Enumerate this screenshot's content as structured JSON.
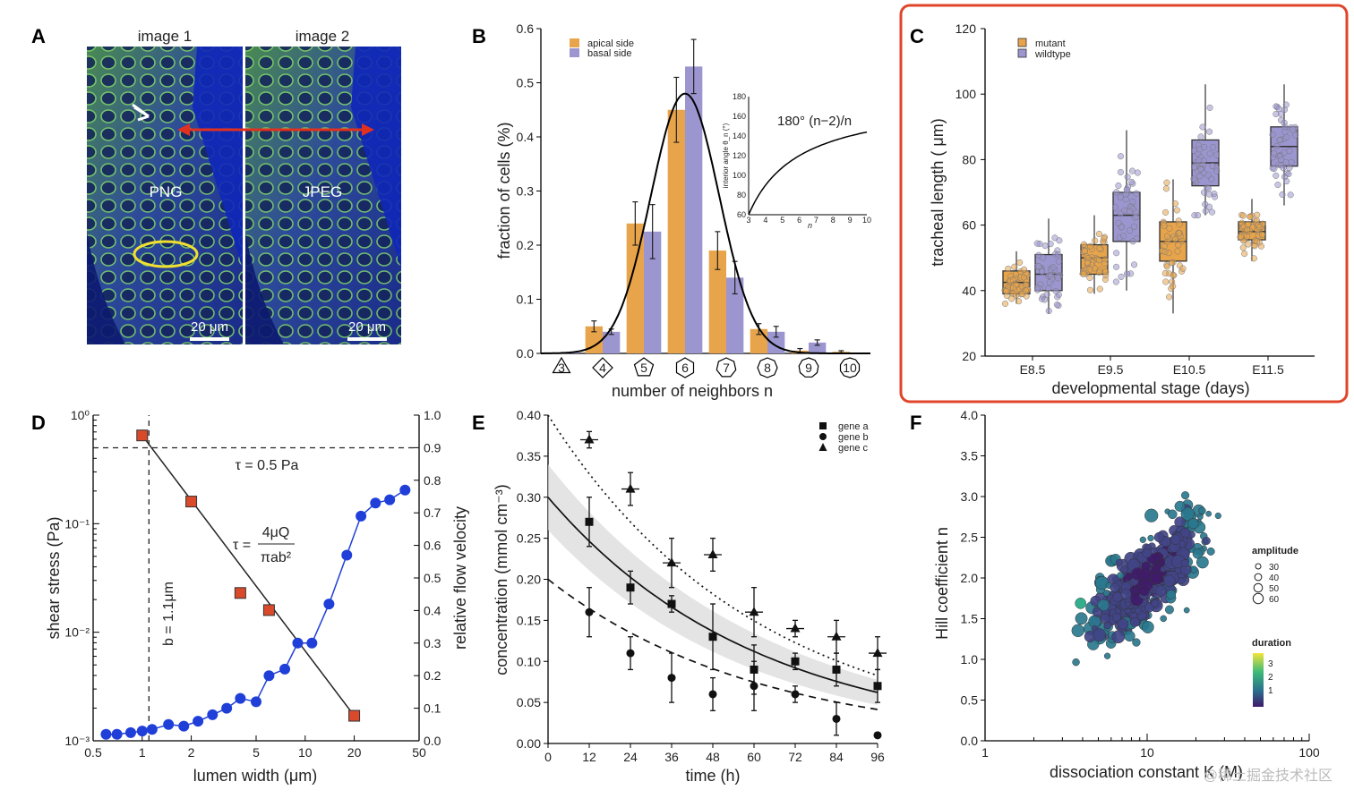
{
  "panels": {
    "A": {
      "label": "A",
      "image1_title": "image 1",
      "image2_title": "image 2",
      "image1_text": "PNG",
      "image2_text": "JPEG",
      "scale_bar": "20 μm"
    },
    "B": {
      "label": "B"
    },
    "C": {
      "label": "C"
    },
    "D": {
      "label": "D",
      "tau_text": "τ = 0.5 Pa",
      "b_text": "b = 1.1μm",
      "eq_lhs": "τ =",
      "eq_num": "4μQ",
      "eq_den": "πab²"
    },
    "E": {
      "label": "E"
    },
    "F": {
      "label": "F"
    }
  },
  "watermark": "@稀土掘金技术社区",
  "colors": {
    "orange": "#e8a44a",
    "purple": "#9b96cf",
    "red": "#d94a2b",
    "blue": "#1f3fd8",
    "highlight": "#e0452a"
  },
  "chart_data": [
    {
      "panel": "B",
      "type": "bar",
      "categories": [
        "3",
        "4",
        "5",
        "6",
        "7",
        "8",
        "9",
        "10"
      ],
      "series": [
        {
          "name": "apical side",
          "values": [
            0.0,
            0.05,
            0.24,
            0.45,
            0.19,
            0.045,
            0.005,
            0.003
          ],
          "errors": [
            0,
            0.01,
            0.04,
            0.06,
            0.035,
            0.01,
            0.004,
            0.002
          ]
        },
        {
          "name": "basal side",
          "values": [
            0.003,
            0.04,
            0.225,
            0.53,
            0.14,
            0.04,
            0.02,
            0.0
          ],
          "errors": [
            0,
            0.005,
            0.05,
            0.05,
            0.03,
            0.01,
            0.005,
            0
          ]
        }
      ],
      "fit": {
        "type": "gaussian",
        "mean": 6,
        "sd": 0.83,
        "peak": 0.48
      },
      "xlabel": "number of neighbors n",
      "ylabel": "fraction of cells (%)",
      "ylim": [
        0,
        0.6
      ],
      "yticks": [
        "0.0",
        "0.1",
        "0.2",
        "0.3",
        "0.4",
        "0.5",
        "0.6"
      ],
      "inset": {
        "formula": "180° (n−2)/n",
        "ylabel": "interior angle θ_n (°)",
        "xlabel": "n",
        "yticks": [
          "60",
          "80",
          "100",
          "120",
          "140",
          "160",
          "180"
        ],
        "xticks": [
          "3",
          "4",
          "5",
          "6",
          "7",
          "8",
          "9",
          "10"
        ]
      }
    },
    {
      "panel": "C",
      "type": "box",
      "categories": [
        "E8.5",
        "E9.5",
        "E10.5",
        "E11.5"
      ],
      "series": [
        {
          "name": "mutant",
          "boxes": [
            {
              "min": 36,
              "q1": 39,
              "median": 42.5,
              "q3": 46,
              "max": 52
            },
            {
              "min": 39,
              "q1": 45,
              "median": 50,
              "q3": 54,
              "max": 63
            },
            {
              "min": 33,
              "q1": 49,
              "median": 55,
              "q3": 61,
              "max": 74
            },
            {
              "min": 49,
              "q1": 55.5,
              "median": 58,
              "q3": 61,
              "max": 68
            }
          ]
        },
        {
          "name": "wildtype",
          "boxes": [
            {
              "min": 33,
              "q1": 40,
              "median": 45,
              "q3": 51,
              "max": 62
            },
            {
              "min": 40,
              "q1": 55,
              "median": 63,
              "q3": 70,
              "max": 89
            },
            {
              "min": 63,
              "q1": 72,
              "median": 79,
              "q3": 86,
              "max": 103
            },
            {
              "min": 66,
              "q1": 78,
              "median": 84,
              "q3": 90,
              "max": 103
            }
          ]
        }
      ],
      "xlabel": "developmental stage (days)",
      "ylabel": "tracheal length ( μm)",
      "ylim": [
        20,
        120
      ],
      "yticks": [
        "20",
        "40",
        "60",
        "80",
        "100",
        "120"
      ],
      "highlighted": true
    },
    {
      "panel": "D",
      "type": "line",
      "xscale": "log",
      "xlim": [
        0.5,
        50
      ],
      "xticks": [
        "0.5",
        "1",
        "2",
        "5",
        "10",
        "20",
        "50"
      ],
      "xlabel": "lumen width (μm)",
      "ylabel": "shear stress (Pa)",
      "yscale": "log",
      "ylim": [
        0.001,
        1
      ],
      "y2label": "relative flow velocity",
      "y2lim": [
        0,
        1
      ],
      "y2ticks": [
        "0.0",
        "0.1",
        "0.2",
        "0.3",
        "0.4",
        "0.5",
        "0.6",
        "0.7",
        "0.8",
        "0.9",
        "1.0"
      ],
      "series": [
        {
          "name": "shear stress",
          "axis": "left",
          "x": [
            1,
            2,
            4,
            6,
            20
          ],
          "y": [
            0.65,
            0.16,
            0.023,
            0.016,
            0.0017
          ]
        },
        {
          "name": "relative flow velocity",
          "axis": "right",
          "x": [
            0.6,
            0.7,
            0.85,
            1.0,
            1.15,
            1.45,
            1.8,
            2.2,
            2.7,
            3.3,
            4.0,
            5.0,
            6.0,
            7.5,
            9.0,
            11,
            14,
            18,
            22,
            27,
            33,
            41
          ],
          "y": [
            0.02,
            0.02,
            0.025,
            0.03,
            0.035,
            0.05,
            0.045,
            0.06,
            0.08,
            0.1,
            0.13,
            0.12,
            0.2,
            0.22,
            0.3,
            0.3,
            0.42,
            0.57,
            0.69,
            0.73,
            0.74,
            0.77
          ]
        }
      ],
      "fit": {
        "x": [
          1,
          20
        ],
        "y": [
          0.65,
          0.0017
        ]
      },
      "refs": {
        "tau": 0.5,
        "b": 1.1
      }
    },
    {
      "panel": "E",
      "type": "scatter",
      "xlabel": "time (h)",
      "ylabel": "concentration (mmol cm⁻³)",
      "xlim": [
        0,
        96
      ],
      "ylim": [
        0,
        0.4
      ],
      "xticks": [
        "0",
        "12",
        "24",
        "36",
        "48",
        "60",
        "72",
        "84",
        "96"
      ],
      "yticks": [
        "0.00",
        "0.05",
        "0.10",
        "0.15",
        "0.20",
        "0.25",
        "0.30",
        "0.35",
        "0.40"
      ],
      "series": [
        {
          "name": "gene a",
          "marker": "square",
          "x": [
            12,
            24,
            36,
            48,
            60,
            72,
            84,
            96
          ],
          "y": [
            0.27,
            0.19,
            0.17,
            0.13,
            0.09,
            0.1,
            0.09,
            0.07
          ],
          "yerr": [
            0.03,
            0.02,
            0.01,
            0.04,
            0.03,
            0.01,
            0.02,
            0.02
          ]
        },
        {
          "name": "gene b",
          "marker": "circle",
          "x": [
            12,
            24,
            36,
            48,
            60,
            72,
            84,
            96
          ],
          "y": [
            0.16,
            0.11,
            0.08,
            0.06,
            0.07,
            0.06,
            0.03,
            0.01
          ],
          "yerr": [
            0.03,
            0.02,
            0.03,
            0.02,
            0.03,
            0.01,
            0.02,
            0
          ]
        },
        {
          "name": "gene c",
          "marker": "triangle",
          "x": [
            12,
            24,
            36,
            48,
            60,
            72,
            84,
            96
          ],
          "y": [
            0.37,
            0.31,
            0.22,
            0.23,
            0.16,
            0.14,
            0.13,
            0.11
          ],
          "yerr": [
            0.01,
            0.02,
            0.03,
            0.02,
            0.03,
            0.01,
            0.02,
            0.02
          ]
        }
      ],
      "fits": [
        {
          "style": "solid",
          "y0": 0.3,
          "k": 0.0164
        },
        {
          "style": "dotted",
          "y0": 0.4,
          "k": 0.0164
        },
        {
          "style": "dashed",
          "y0": 0.2,
          "k": 0.0164
        }
      ]
    },
    {
      "panel": "F",
      "type": "scatter",
      "xlabel": "dissociation constant K (M)",
      "ylabel": "Hill coefficient n",
      "xscale": "log",
      "xlim": [
        1,
        100
      ],
      "xticks": [
        "1",
        "10",
        "100"
      ],
      "ylim": [
        0,
        4
      ],
      "yticks": [
        "0.0",
        "0.5",
        "1.0",
        "1.5",
        "2.0",
        "2.5",
        "3.0",
        "3.5",
        "4.0"
      ],
      "size_legend": {
        "title": "amplitude",
        "values": [
          30,
          40,
          50,
          60
        ]
      },
      "color_legend": {
        "title": "duration",
        "values": [
          "3",
          "2",
          "1"
        ]
      },
      "cluster": {
        "center_K": 10,
        "center_n": 2.0,
        "count": 420
      }
    }
  ]
}
